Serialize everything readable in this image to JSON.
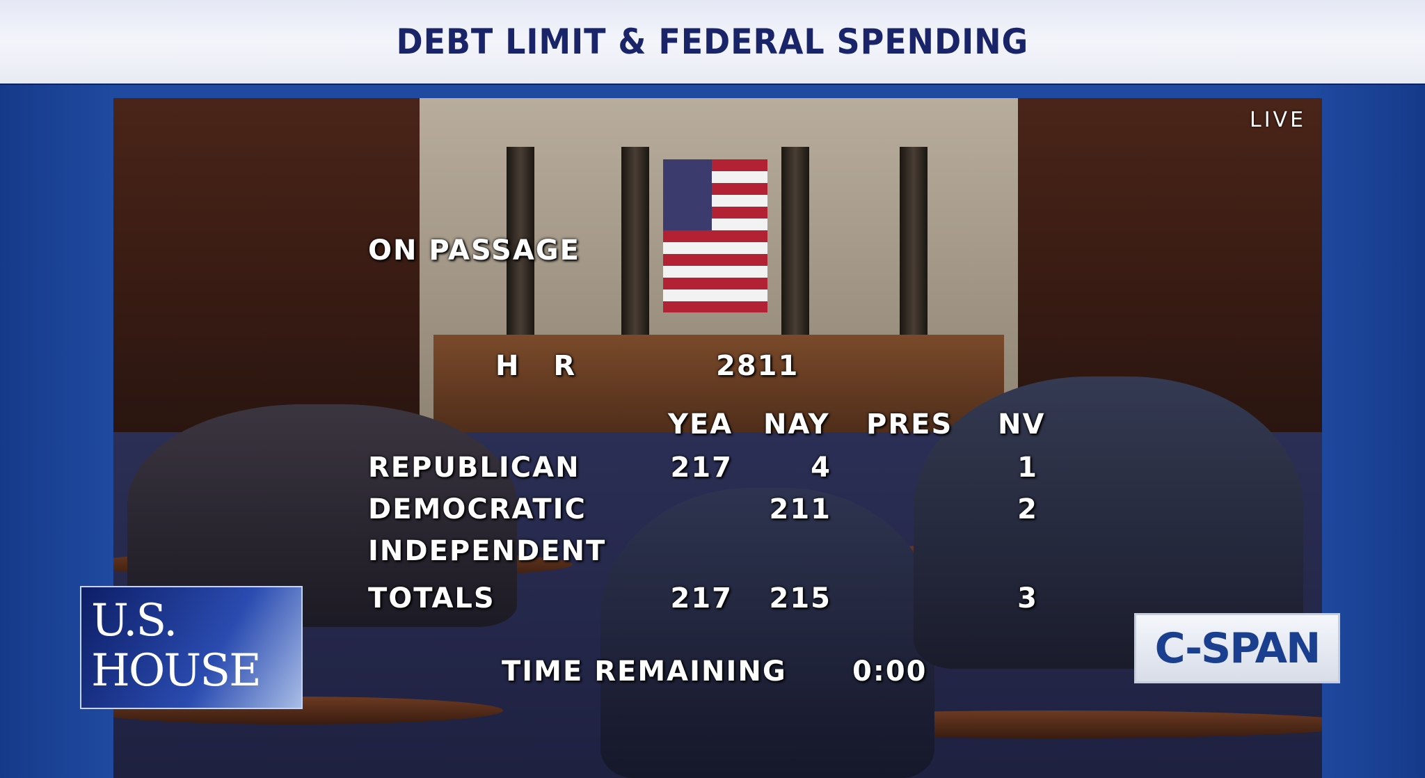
{
  "banner": {
    "title": "DEBT LIMIT & FEDERAL SPENDING"
  },
  "video": {
    "live_label": "LIVE"
  },
  "vote": {
    "question": "ON PASSAGE",
    "bill_prefix": "H R",
    "bill_number": "2811",
    "columns": [
      "YEA",
      "NAY",
      "PRES",
      "NV"
    ],
    "rows": [
      {
        "party": "REPUBLICAN",
        "yea": "217",
        "nay": "4",
        "pres": "",
        "nv": "1"
      },
      {
        "party": "DEMOCRATIC",
        "yea": "",
        "nay": "211",
        "pres": "",
        "nv": "2"
      },
      {
        "party": "INDEPENDENT",
        "yea": "",
        "nay": "",
        "pres": "",
        "nv": ""
      },
      {
        "party": "TOTALS",
        "yea": "217",
        "nay": "215",
        "pres": "",
        "nv": "3"
      }
    ],
    "time_label": "TIME REMAINING",
    "time_value": "0:00"
  },
  "branding": {
    "house_logo_line1": "U.S.",
    "house_logo_line2": "HOUSE",
    "network_logo": "C-SPAN"
  },
  "colors": {
    "banner_text": "#1a2468",
    "frame_blue": "#1f4aa0",
    "logo_blue": "#1b3f8f"
  }
}
